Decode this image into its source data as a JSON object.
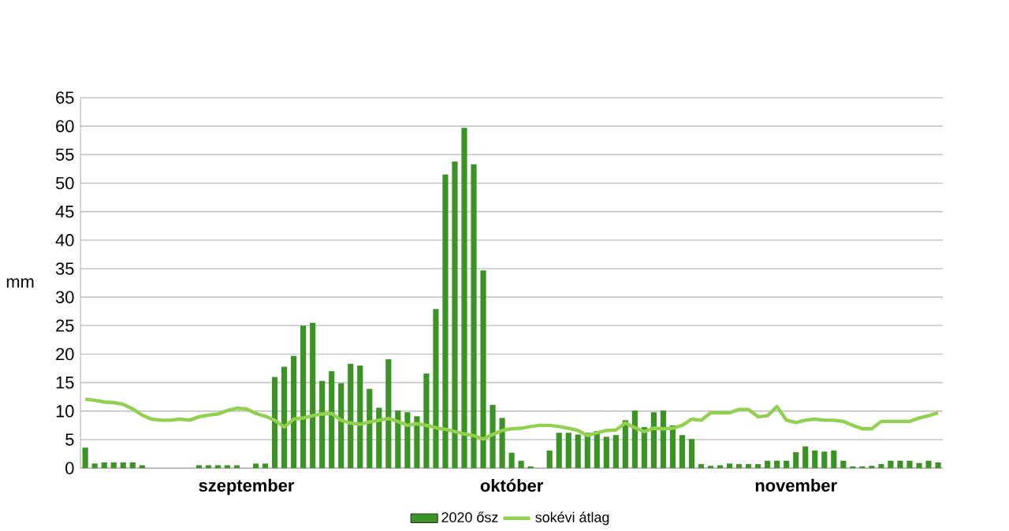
{
  "chart_data": {
    "type": "bar",
    "ylabel": "mm",
    "legend": "bottom",
    "grid": "y",
    "categories": [
      null,
      null,
      null,
      null,
      null,
      null,
      null,
      null,
      null,
      null,
      null,
      null,
      null,
      null,
      null,
      null,
      null,
      "szeptember",
      null,
      null,
      null,
      null,
      null,
      null,
      null,
      null,
      null,
      null,
      null,
      null,
      null,
      null,
      null,
      null,
      null,
      null,
      null,
      null,
      null,
      null,
      null,
      null,
      null,
      null,
      null,
      "október",
      null,
      null,
      null,
      null,
      null,
      null,
      null,
      null,
      null,
      null,
      null,
      null,
      null,
      null,
      null,
      null,
      null,
      null,
      null,
      null,
      null,
      null,
      null,
      null,
      null,
      null,
      null,
      null,
      null,
      "november",
      null,
      null,
      null,
      null,
      null,
      null,
      null,
      null,
      null,
      null,
      null,
      null,
      null,
      null,
      null
    ],
    "ylim": [
      0,
      65
    ],
    "yticks": [
      0,
      5,
      10,
      15,
      20,
      25,
      30,
      35,
      40,
      45,
      50,
      55,
      60,
      65
    ],
    "series": [
      {
        "name": "2020 ősz",
        "type": "bar",
        "color": "#3a9423",
        "values": [
          3.6,
          0.8,
          1.0,
          1.0,
          1.0,
          1.0,
          0.5,
          0,
          0,
          0,
          0,
          0,
          0.5,
          0.5,
          0.5,
          0.5,
          0.5,
          0,
          0.8,
          0.8,
          16.0,
          17.8,
          19.7,
          25.0,
          25.5,
          15.3,
          17.0,
          14.9,
          18.3,
          18.0,
          13.9,
          10.6,
          19.1,
          10.1,
          9.8,
          9.1,
          16.6,
          27.9,
          51.5,
          53.8,
          59.7,
          53.3,
          34.7,
          11.1,
          8.8,
          2.7,
          1.3,
          0.3,
          0,
          3.1,
          6.2,
          6.2,
          5.9,
          6.2,
          6.5,
          5.5,
          5.8,
          8.4,
          10.1,
          7.2,
          9.8,
          10.1,
          7.5,
          5.8,
          5.1,
          0.7,
          0.4,
          0.5,
          0.8,
          0.7,
          0.7,
          0.7,
          1.3,
          1.3,
          1.3,
          2.8,
          3.8,
          3.1,
          2.9,
          3.1,
          1.3,
          0.3,
          0.3,
          0.4,
          0.7,
          1.3,
          1.3,
          1.3,
          0.9,
          1.3,
          1.0
        ]
      },
      {
        "name": "sokévi átlag",
        "type": "line",
        "color": "#92d050",
        "values": [
          12.1,
          11.9,
          11.6,
          11.5,
          11.2,
          10.4,
          9.3,
          8.6,
          8.4,
          8.4,
          8.6,
          8.4,
          9.0,
          9.3,
          9.5,
          10.1,
          10.5,
          10.4,
          9.6,
          9.1,
          8.4,
          7.2,
          8.6,
          8.8,
          9.2,
          9.5,
          9.6,
          8.4,
          7.9,
          7.7,
          8.1,
          8.4,
          8.7,
          8.2,
          7.5,
          7.8,
          7.5,
          7.1,
          6.8,
          6.4,
          6.0,
          5.7,
          5.1,
          5.9,
          6.6,
          6.9,
          7.0,
          7.3,
          7.5,
          7.5,
          7.3,
          7.0,
          6.6,
          5.7,
          6.2,
          6.6,
          6.7,
          7.9,
          7.1,
          6.4,
          7.0,
          6.9,
          7.0,
          7.5,
          8.6,
          8.4,
          9.7,
          9.7,
          9.7,
          10.3,
          10.3,
          9.0,
          9.2,
          10.8,
          8.4,
          8.0,
          8.4,
          8.6,
          8.4,
          8.4,
          8.2,
          7.5,
          6.9,
          6.9,
          8.2,
          8.2,
          8.2,
          8.2,
          8.8,
          9.2,
          9.7
        ]
      }
    ]
  }
}
